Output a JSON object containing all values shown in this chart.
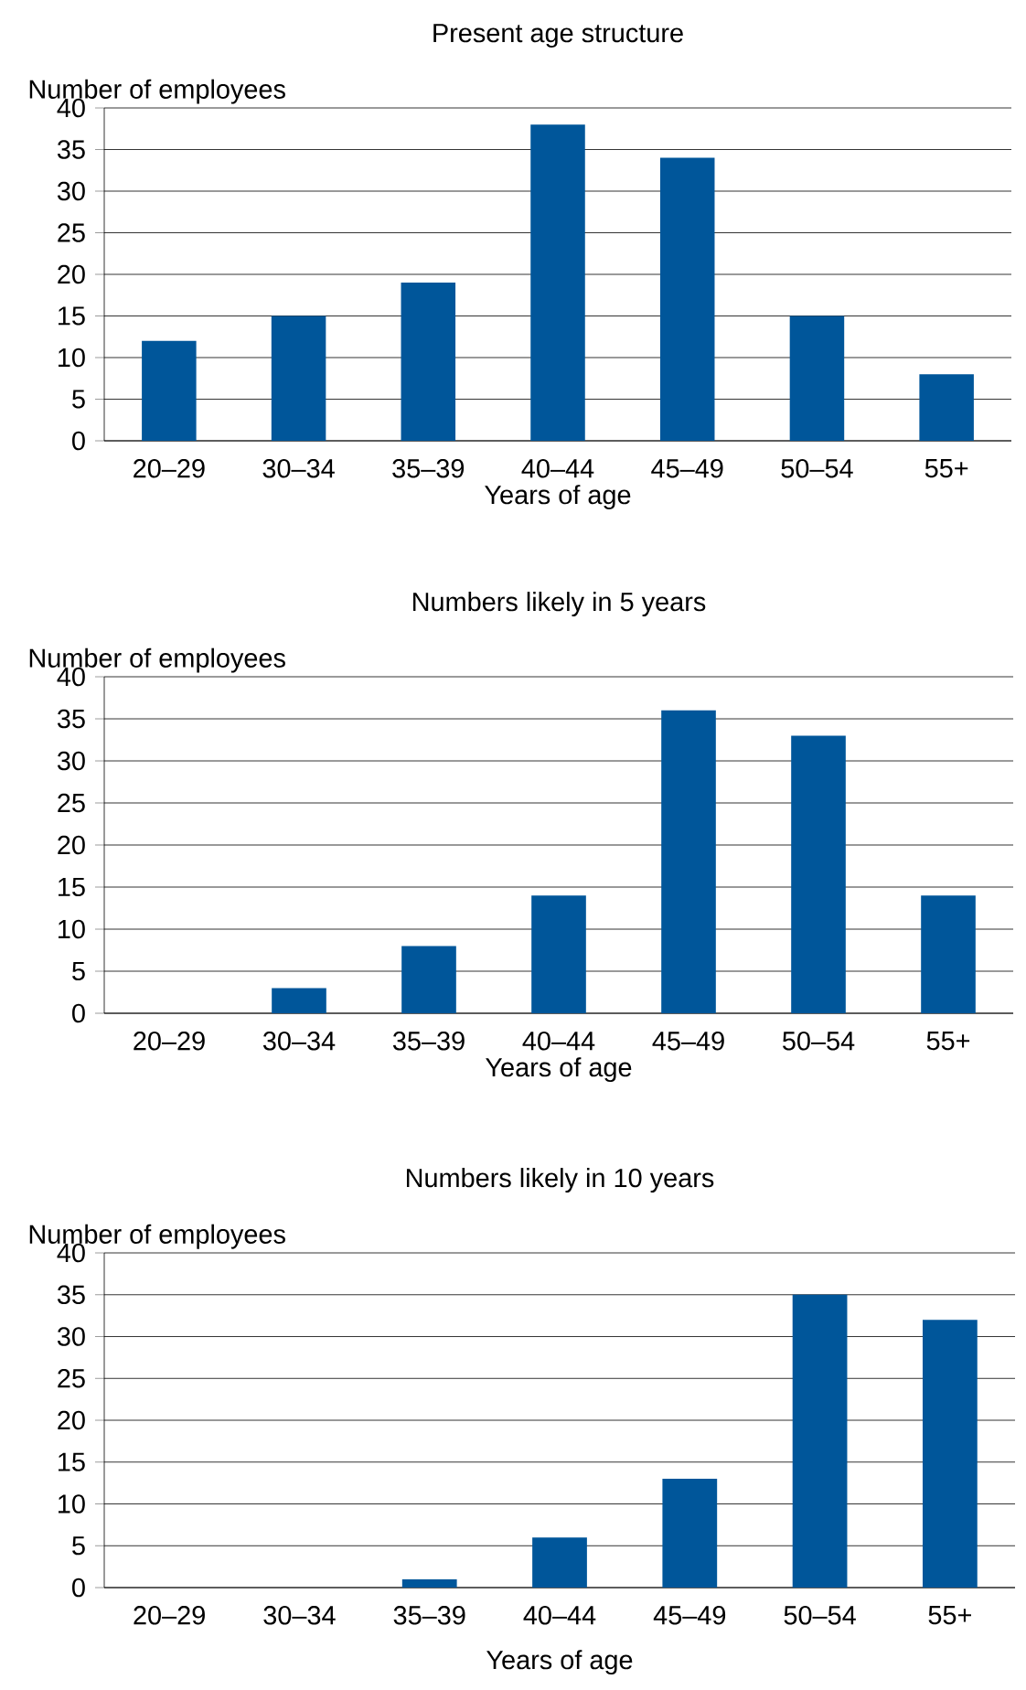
{
  "chart_data": [
    {
      "type": "bar",
      "title": "Present age structure",
      "ylabel": "Number of employees",
      "xlabel": "Years of age",
      "categories": [
        "20–29",
        "30–34",
        "35–39",
        "40–44",
        "45–49",
        "50–54",
        "55+"
      ],
      "values": [
        12,
        15,
        19,
        38,
        34,
        15,
        8
      ],
      "color": "#00569a",
      "ylim": [
        0,
        40
      ],
      "yticks": [
        0,
        5,
        10,
        15,
        20,
        25,
        30,
        35,
        40
      ],
      "grid": "y"
    },
    {
      "type": "bar",
      "title": "Numbers likely in 5 years",
      "ylabel": "Number of employees",
      "xlabel": "Years of age",
      "categories": [
        "20–29",
        "30–34",
        "35–39",
        "40–44",
        "45–49",
        "50–54",
        "55+"
      ],
      "values": [
        0,
        3,
        8,
        14,
        36,
        33,
        14
      ],
      "color": "#00569a",
      "ylim": [
        0,
        40
      ],
      "yticks": [
        0,
        5,
        10,
        15,
        20,
        25,
        30,
        35,
        40
      ],
      "grid": "y"
    },
    {
      "type": "bar",
      "title": "Numbers likely in 10 years",
      "ylabel": "Number of employees",
      "xlabel": "Years of age",
      "categories": [
        "20–29",
        "30–34",
        "35–39",
        "40–44",
        "45–49",
        "50–54",
        "55+"
      ],
      "values": [
        0,
        0,
        1,
        6,
        13,
        35,
        32
      ],
      "color": "#00569a",
      "ylim": [
        0,
        40
      ],
      "yticks": [
        0,
        5,
        10,
        15,
        20,
        25,
        30,
        35,
        40
      ],
      "grid": "y"
    }
  ]
}
